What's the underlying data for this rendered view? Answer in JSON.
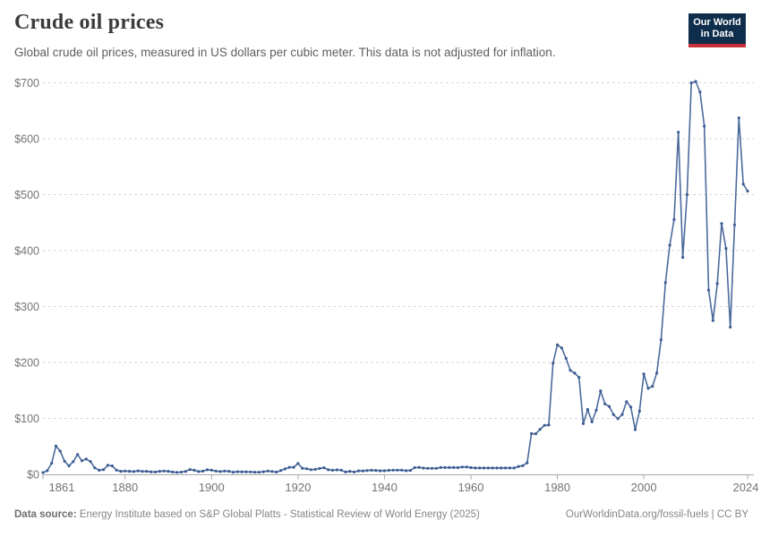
{
  "header": {
    "title": "Crude oil prices",
    "subtitle": "Global crude oil prices, measured in US dollars per cubic meter. This data is not adjusted for inflation.",
    "logo": {
      "line1": "Our World",
      "line2": "in Data",
      "bg_color": "#0f2e4c",
      "bar_color": "#c8303a"
    }
  },
  "footer": {
    "source_label": "Data source:",
    "source_text": " Energy Institute based on S&P Global Platts - Statistical Review of World Energy (2025)",
    "link_text": "OurWorldinData.org/fossil-fuels",
    "separator": " | ",
    "license_text": "CC BY"
  },
  "chart_data": {
    "type": "line",
    "title": "Crude oil prices",
    "series_name": "Crude oil price (US$ per cubic meter)",
    "xlabel": "",
    "ylabel": "",
    "xlim": [
      1861,
      2024
    ],
    "ylim": [
      0,
      700
    ],
    "x_ticks": [
      1861,
      1880,
      1900,
      1920,
      1940,
      1960,
      1980,
      2000,
      2024
    ],
    "y_ticks": [
      0,
      100,
      200,
      300,
      400,
      500,
      600,
      700
    ],
    "y_tick_prefix": "$",
    "grid": "horizontal-dashed",
    "legend": "none",
    "line_color": "#4c6a9c",
    "marker_color": "#3c5c94",
    "grid_color": "#d7d7d7",
    "axis_color": "#a8a8a8",
    "axis_label_color": "#737373",
    "x": [
      1861,
      1862,
      1863,
      1864,
      1865,
      1866,
      1867,
      1868,
      1869,
      1870,
      1871,
      1872,
      1873,
      1874,
      1875,
      1876,
      1877,
      1878,
      1879,
      1880,
      1881,
      1882,
      1883,
      1884,
      1885,
      1886,
      1887,
      1888,
      1889,
      1890,
      1891,
      1892,
      1893,
      1894,
      1895,
      1896,
      1897,
      1898,
      1899,
      1900,
      1901,
      1902,
      1903,
      1904,
      1905,
      1906,
      1907,
      1908,
      1909,
      1910,
      1911,
      1912,
      1913,
      1914,
      1915,
      1916,
      1917,
      1918,
      1919,
      1920,
      1921,
      1922,
      1923,
      1924,
      1925,
      1926,
      1927,
      1928,
      1929,
      1930,
      1931,
      1932,
      1933,
      1934,
      1935,
      1936,
      1937,
      1938,
      1939,
      1940,
      1941,
      1942,
      1943,
      1944,
      1945,
      1946,
      1947,
      1948,
      1949,
      1950,
      1951,
      1952,
      1953,
      1954,
      1955,
      1956,
      1957,
      1958,
      1959,
      1960,
      1961,
      1962,
      1963,
      1964,
      1965,
      1966,
      1967,
      1968,
      1969,
      1970,
      1971,
      1972,
      1973,
      1974,
      1975,
      1976,
      1977,
      1978,
      1979,
      1980,
      1981,
      1982,
      1983,
      1984,
      1985,
      1986,
      1987,
      1988,
      1989,
      1990,
      1991,
      1992,
      1993,
      1994,
      1995,
      1996,
      1997,
      1998,
      1999,
      2000,
      2001,
      2002,
      2003,
      2004,
      2005,
      2006,
      2007,
      2008,
      2009,
      2010,
      2011,
      2012,
      2013,
      2014,
      2015,
      2016,
      2017,
      2018,
      2019,
      2020,
      2021,
      2022,
      2023,
      2024
    ],
    "values": [
      3.1,
      6.6,
      19.8,
      50.7,
      41.5,
      23.5,
      15.2,
      22.8,
      35.5,
      24.3,
      27.3,
      22.9,
      11.5,
      7.4,
      8.5,
      16.1,
      15.2,
      7.5,
      5.4,
      6.0,
      5.4,
      4.9,
      6.3,
      5.3,
      5.5,
      4.5,
      4.2,
      5.5,
      5.9,
      5.5,
      4.2,
      3.5,
      4.0,
      5.3,
      8.6,
      7.4,
      5.0,
      5.7,
      8.1,
      7.5,
      6.0,
      5.0,
      5.9,
      5.4,
      3.9,
      4.6,
      4.5,
      4.5,
      4.4,
      3.8,
      3.8,
      4.7,
      6.0,
      5.1,
      4.0,
      6.9,
      9.8,
      12.5,
      12.6,
      19.3,
      10.9,
      10.1,
      8.4,
      9.0,
      10.6,
      11.8,
      8.2,
      7.4,
      8.0,
      7.5,
      4.1,
      5.5,
      4.2,
      6.3,
      6.1,
      6.9,
      7.4,
      7.1,
      6.4,
      6.4,
      7.2,
      7.5,
      7.5,
      7.6,
      6.6,
      7.0,
      12.0,
      12.5,
      11.2,
      10.8,
      10.8,
      10.8,
      12.1,
      12.1,
      12.1,
      12.1,
      12.0,
      13.1,
      13.1,
      12.0,
      11.3,
      11.3,
      11.3,
      11.3,
      11.3,
      11.3,
      11.3,
      11.3,
      11.3,
      11.3,
      14.1,
      15.6,
      20.7,
      72.8,
      72.5,
      80.5,
      87.6,
      88.2,
      198.8,
      231.7,
      226.0,
      207.4,
      185.9,
      181.0,
      173.4,
      90.8,
      116.0,
      93.8,
      114.7,
      149.3,
      125.8,
      121.5,
      106.7,
      99.5,
      107.1,
      130.0,
      120.1,
      80.0,
      113.0,
      179.3,
      153.7,
      157.4,
      181.3,
      240.7,
      342.9,
      409.7,
      455.3,
      611.7,
      387.9,
      500.0,
      699.8,
      702.4,
      683.4,
      622.4,
      329.5,
      275.1,
      340.9,
      448.5,
      403.9,
      263.2,
      446.0,
      637.3,
      518.9,
      506.4
    ]
  }
}
